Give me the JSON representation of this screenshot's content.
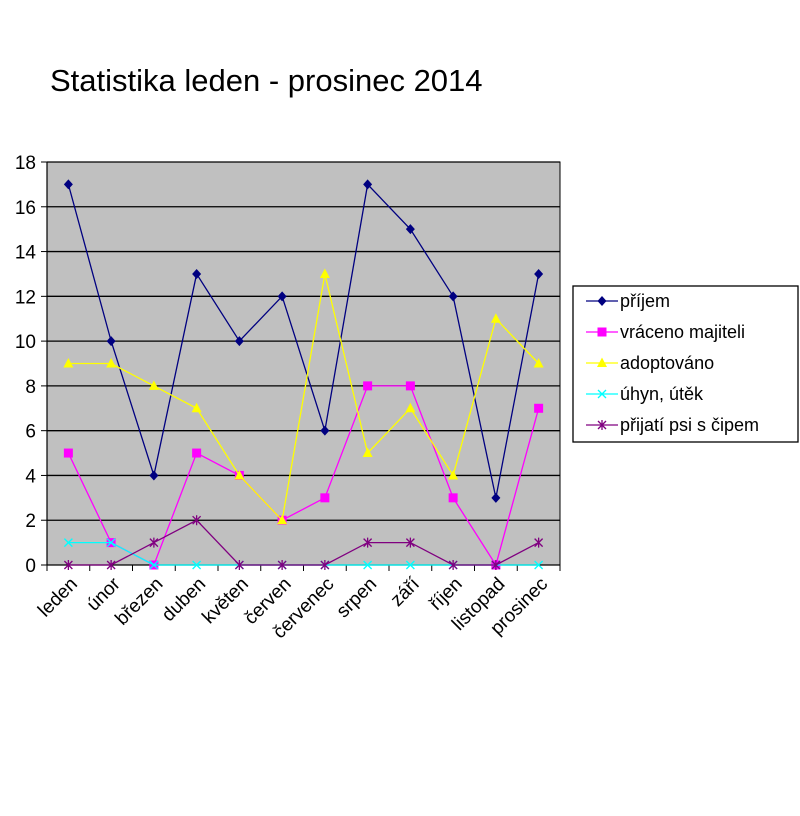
{
  "chart_data": {
    "type": "line",
    "title": "Statistika leden - prosinec 2014",
    "xlabel": "",
    "ylabel": "",
    "ylim": [
      0,
      18
    ],
    "ytick_step": 2,
    "grid": true,
    "legend_position": "right",
    "plot_background": "#c0c0c0",
    "categories": [
      "leden",
      "únor",
      "březen",
      "duben",
      "květen",
      "červen",
      "červenec",
      "srpen",
      "září",
      "říjen",
      "listopad",
      "prosinec"
    ],
    "series": [
      {
        "name": "příjem",
        "color": "#000080",
        "marker": "diamond",
        "values": [
          17,
          10,
          4,
          13,
          10,
          12,
          6,
          17,
          15,
          12,
          3,
          13
        ]
      },
      {
        "name": "vráceno majiteli",
        "color": "#ff00ff",
        "marker": "square",
        "values": [
          5,
          1,
          0,
          5,
          4,
          2,
          3,
          8,
          8,
          3,
          0,
          7
        ]
      },
      {
        "name": "adoptováno",
        "color": "#ffff00",
        "marker": "triangle",
        "values": [
          9,
          9,
          8,
          7,
          4,
          2,
          13,
          5,
          7,
          4,
          11,
          9
        ]
      },
      {
        "name": "úhyn, útěk",
        "color": "#00ffff",
        "marker": "x",
        "values": [
          1,
          1,
          0,
          0,
          0,
          0,
          0,
          0,
          0,
          0,
          0,
          0
        ]
      },
      {
        "name": "přijatí psi s čipem",
        "color": "#800080",
        "marker": "star",
        "values": [
          0,
          0,
          1,
          2,
          0,
          0,
          0,
          1,
          1,
          0,
          0,
          1
        ]
      }
    ]
  }
}
